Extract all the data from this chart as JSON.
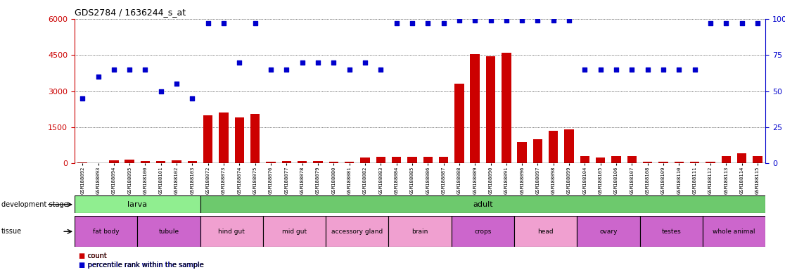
{
  "title": "GDS2784 / 1636244_s_at",
  "samples": [
    "GSM188092",
    "GSM188093",
    "GSM188094",
    "GSM188095",
    "GSM188100",
    "GSM188101",
    "GSM188102",
    "GSM188103",
    "GSM188072",
    "GSM188073",
    "GSM188074",
    "GSM188075",
    "GSM188076",
    "GSM188077",
    "GSM188078",
    "GSM188079",
    "GSM188080",
    "GSM188081",
    "GSM188082",
    "GSM188083",
    "GSM188084",
    "GSM188085",
    "GSM188086",
    "GSM188087",
    "GSM188088",
    "GSM188089",
    "GSM188090",
    "GSM188091",
    "GSM188096",
    "GSM188097",
    "GSM188098",
    "GSM188099",
    "GSM188104",
    "GSM188105",
    "GSM188106",
    "GSM188107",
    "GSM188108",
    "GSM188109",
    "GSM188110",
    "GSM188111",
    "GSM188112",
    "GSM188113",
    "GSM188114",
    "GSM188115"
  ],
  "counts": [
    30,
    20,
    120,
    150,
    110,
    100,
    130,
    110,
    2000,
    2100,
    1900,
    2050,
    80,
    100,
    90,
    90,
    80,
    80,
    250,
    280,
    280,
    260,
    280,
    280,
    3300,
    4550,
    4450,
    4600,
    900,
    1000,
    1350,
    1400,
    300,
    250,
    300,
    290,
    70,
    70,
    70,
    60,
    70,
    300,
    430,
    290
  ],
  "percentile": [
    45,
    60,
    65,
    65,
    65,
    50,
    55,
    45,
    97,
    97,
    70,
    97,
    65,
    65,
    70,
    70,
    70,
    65,
    70,
    65,
    97,
    97,
    97,
    97,
    99,
    99,
    99,
    99,
    99,
    99,
    99,
    99,
    65,
    65,
    65,
    65,
    65,
    65,
    65,
    65,
    97,
    97,
    97,
    97
  ],
  "ylim_left": [
    0,
    6000
  ],
  "ylim_right": [
    0,
    100
  ],
  "yticks_left": [
    0,
    1500,
    3000,
    4500,
    6000
  ],
  "yticks_right": [
    0,
    25,
    50,
    75,
    100
  ],
  "bar_color": "#cc0000",
  "dot_color": "#0000cc",
  "dev_stage_row": [
    {
      "label": "larva",
      "start": 0,
      "end": 8,
      "color": "#90ee90"
    },
    {
      "label": "adult",
      "start": 8,
      "end": 44,
      "color": "#6dc96d"
    }
  ],
  "tissue_row": [
    {
      "label": "fat body",
      "start": 0,
      "end": 4,
      "color": "#cc66cc"
    },
    {
      "label": "tubule",
      "start": 4,
      "end": 8,
      "color": "#cc66cc"
    },
    {
      "label": "hind gut",
      "start": 8,
      "end": 12,
      "color": "#f0a0d0"
    },
    {
      "label": "mid gut",
      "start": 12,
      "end": 16,
      "color": "#f0a0d0"
    },
    {
      "label": "accessory gland",
      "start": 16,
      "end": 20,
      "color": "#f0a0d0"
    },
    {
      "label": "brain",
      "start": 20,
      "end": 24,
      "color": "#f0a0d0"
    },
    {
      "label": "crops",
      "start": 24,
      "end": 28,
      "color": "#cc66cc"
    },
    {
      "label": "head",
      "start": 28,
      "end": 32,
      "color": "#f0a0d0"
    },
    {
      "label": "ovary",
      "start": 32,
      "end": 36,
      "color": "#cc66cc"
    },
    {
      "label": "testes",
      "start": 36,
      "end": 40,
      "color": "#cc66cc"
    },
    {
      "label": "whole animal",
      "start": 40,
      "end": 44,
      "color": "#cc66cc"
    }
  ]
}
